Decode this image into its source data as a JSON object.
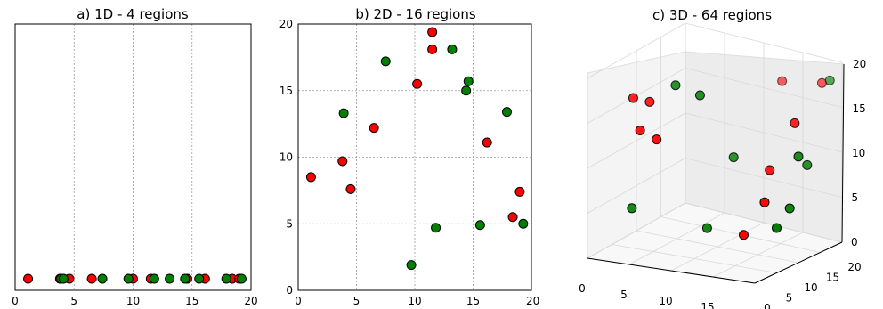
{
  "colors": {
    "red": "#ff0000",
    "green": "#008000"
  },
  "chart_data": [
    {
      "type": "scatter",
      "title": "a) 1D - 4 regions",
      "xlim": [
        0,
        20
      ],
      "x_ticks": [
        "0",
        "5",
        "10",
        "15",
        "20"
      ],
      "grid": true,
      "y_value": 0,
      "series": [
        {
          "color": "red",
          "x": [
            1.1,
            3.8,
            4.6,
            6.5,
            10.0,
            11.5,
            14.6,
            16.1,
            18.4,
            19.0
          ]
        },
        {
          "color": "green",
          "x": [
            3.9,
            4.1,
            7.4,
            9.6,
            11.8,
            13.1,
            14.4,
            15.6,
            17.9,
            19.2
          ]
        }
      ]
    },
    {
      "type": "scatter",
      "title": "b) 2D - 16 regions",
      "xlim": [
        0,
        20
      ],
      "ylim": [
        0,
        20
      ],
      "x_ticks": [
        "0",
        "5",
        "10",
        "15",
        "20"
      ],
      "y_ticks": [
        "0",
        "5",
        "10",
        "15",
        "20"
      ],
      "grid": true,
      "series": [
        {
          "color": "red",
          "points": [
            [
              1.1,
              8.5
            ],
            [
              3.8,
              9.7
            ],
            [
              4.5,
              7.6
            ],
            [
              6.5,
              12.2
            ],
            [
              10.2,
              15.5
            ],
            [
              11.5,
              19.4
            ],
            [
              11.5,
              18.1
            ],
            [
              16.2,
              11.1
            ],
            [
              18.4,
              5.5
            ],
            [
              19.0,
              7.4
            ]
          ]
        },
        {
          "color": "green",
          "points": [
            [
              3.9,
              13.3
            ],
            [
              7.5,
              17.2
            ],
            [
              9.7,
              1.9
            ],
            [
              11.8,
              4.7
            ],
            [
              13.2,
              18.1
            ],
            [
              14.4,
              15.0
            ],
            [
              14.6,
              15.7
            ],
            [
              15.6,
              4.9
            ],
            [
              17.9,
              13.4
            ],
            [
              19.3,
              5.0
            ]
          ]
        }
      ]
    },
    {
      "type": "scatter",
      "title": "c) 3D - 64 regions",
      "x_ticks": [
        "0",
        "5",
        "10",
        "15",
        "20"
      ],
      "y_ticks": [
        "0",
        "5",
        "10",
        "15",
        "20"
      ],
      "z_ticks": [
        "0",
        "5",
        "10",
        "15",
        "20"
      ],
      "grid": true,
      "series": [
        {
          "color": "red",
          "points": [
            [
              2,
              6,
              16.3
            ],
            [
              4,
              6,
              16.2
            ],
            [
              4,
              4,
              13.6
            ],
            [
              13.5,
              18,
              17
            ],
            [
              18,
              19,
              17.5
            ],
            [
              6,
              4,
              12.9
            ],
            [
              19,
              11,
              15.1
            ],
            [
              17,
              9,
              10
            ],
            [
              18,
              6,
              7.3
            ],
            [
              16,
              5,
              3.6
            ]
          ]
        },
        {
          "color": "green",
          "points": [
            [
              6,
              8,
              17.8
            ],
            [
              9,
              8,
              17.2
            ],
            [
              19,
              19,
              18
            ],
            [
              20,
              10,
              11.8
            ],
            [
              20,
              12,
              10.4
            ],
            [
              12,
              10,
              10.3
            ],
            [
              3,
              4,
              4.8
            ],
            [
              20,
              5,
              5
            ],
            [
              20,
              8,
              6.5
            ],
            [
              11,
              6,
              3.3
            ]
          ]
        }
      ]
    }
  ]
}
